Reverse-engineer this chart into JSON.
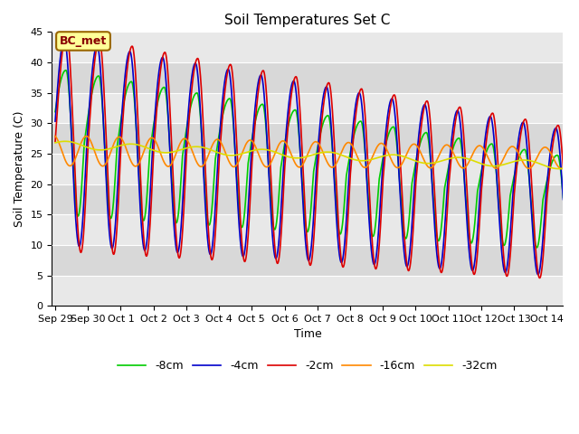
{
  "title": "Soil Temperatures Set C",
  "xlabel": "Time",
  "ylabel": "Soil Temperature (C)",
  "ylim": [
    0,
    45
  ],
  "x_tick_labels": [
    "Sep 29",
    "Sep 30",
    "Oct 1",
    "Oct 2",
    "Oct 3",
    "Oct 4",
    "Oct 5",
    "Oct 6",
    "Oct 7",
    "Oct 8",
    "Oct 9",
    "Oct 10",
    "Oct 11",
    "Oct 12",
    "Oct 13",
    "Oct 14"
  ],
  "legend_labels": [
    "-2cm",
    "-4cm",
    "-8cm",
    "-16cm",
    "-32cm"
  ],
  "line_colors": [
    "#dd0000",
    "#0000cc",
    "#00cc00",
    "#ff8800",
    "#dddd00"
  ],
  "background_color": "#d8d8d8",
  "stripe_color": "#e8e8e8",
  "annotation_text": "BC_met",
  "annotation_bg": "#ffff99",
  "annotation_border": "#996600"
}
